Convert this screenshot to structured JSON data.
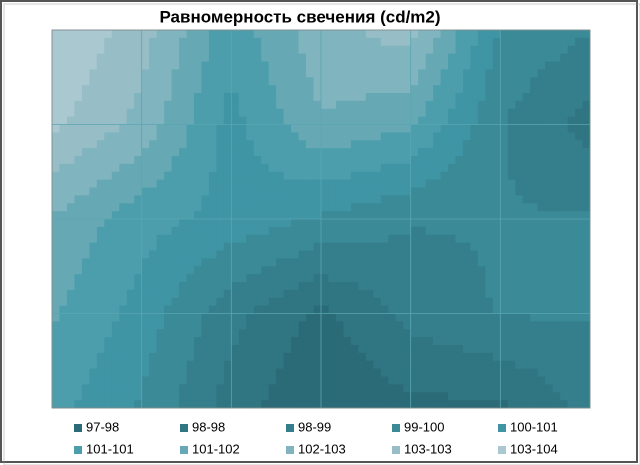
{
  "chart_data": {
    "type": "contour",
    "title": "Равномерность свечения (cd/m2)",
    "z": [
      [
        104,
        103,
        101,
        102.5,
        103,
        100,
        99.5
      ],
      [
        103.5,
        102.5,
        100.5,
        102,
        101.5,
        99.5,
        98.5
      ],
      [
        102,
        101,
        100.5,
        100,
        99.5,
        99.5,
        99.5
      ],
      [
        101.5,
        100.5,
        99,
        98,
        99,
        99.5,
        99.5
      ],
      [
        101,
        100,
        98.5,
        97.5,
        98,
        98,
        99
      ]
    ],
    "series": [
      {
        "name": "97-98",
        "color": "#2b6b78"
      },
      {
        "name": "98-98",
        "color": "#307582"
      },
      {
        "name": "98-99",
        "color": "#357f8c"
      },
      {
        "name": "99-100",
        "color": "#3a8a98"
      },
      {
        "name": "100-101",
        "color": "#3f95a4"
      },
      {
        "name": "101-101",
        "color": "#4d9eac"
      },
      {
        "name": "101-102",
        "color": "#66a9b5"
      },
      {
        "name": "102-103",
        "color": "#80b4be"
      },
      {
        "name": "103-103",
        "color": "#97bec7"
      },
      {
        "name": "103-104",
        "color": "#aac8cf"
      }
    ],
    "grid": true
  }
}
